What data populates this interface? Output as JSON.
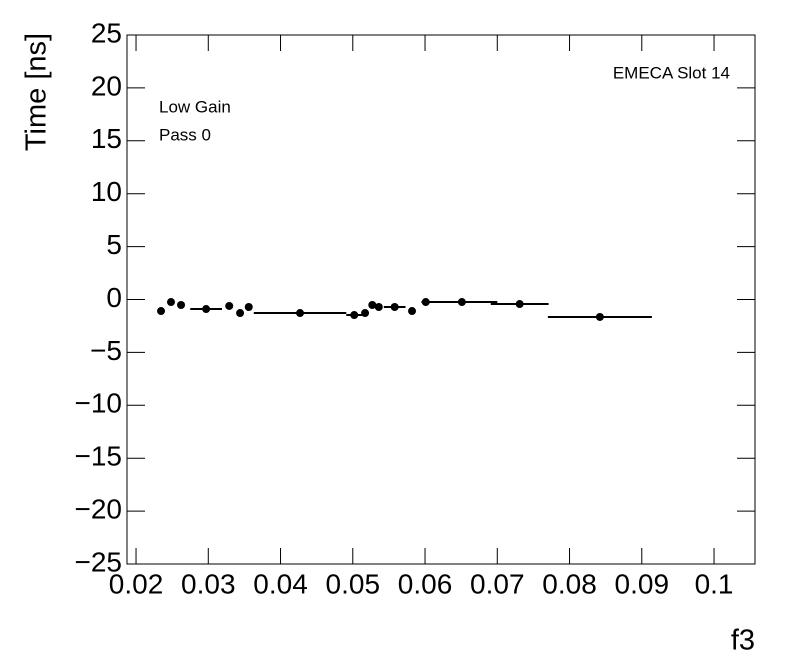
{
  "chart_data": {
    "type": "errorbar",
    "x_label": "f3",
    "y_label": "Time [ns]",
    "annotations": [
      "EMECA Slot 14",
      "Low Gain",
      "Pass 0"
    ],
    "x": [
      0.02346,
      0.02484,
      0.02623,
      0.0297,
      0.0329,
      0.0344,
      0.0356,
      0.0427,
      0.0502,
      0.0517,
      0.0527,
      0.0536,
      0.0558,
      0.0582,
      0.0601,
      0.0651,
      0.0731,
      0.0842
    ],
    "xerr": [
      0.0002,
      0.0002,
      0.0002,
      0.0022,
      0.0002,
      0.0002,
      0.0002,
      0.0064,
      0.0011,
      0.0002,
      0.0002,
      0.0002,
      0.0015,
      0.0002,
      0.0006,
      0.0049,
      0.004,
      0.0072
    ],
    "values": [
      -1.09,
      -0.24,
      -0.52,
      -0.9,
      -0.61,
      -1.28,
      -0.71,
      -1.28,
      -1.47,
      -1.28,
      -0.52,
      -0.71,
      -0.71,
      -1.09,
      -0.24,
      -0.24,
      -0.43,
      -1.65
    ],
    "color": "#000000",
    "xlim": [
      0.01875,
      0.10567
    ],
    "ylim": [
      -25,
      25
    ],
    "xticks": [
      0.02,
      0.03,
      0.04,
      0.05,
      0.06,
      0.07,
      0.08,
      0.09,
      0.1
    ],
    "yticks": [
      {
        "value": -25,
        "label": "−25"
      },
      {
        "value": -20,
        "label": "−20"
      },
      {
        "value": -15,
        "label": "−15"
      },
      {
        "value": -10,
        "label": "−10"
      },
      {
        "value": -5,
        "label": "−5"
      },
      0,
      5,
      10,
      15,
      20,
      25
    ]
  }
}
